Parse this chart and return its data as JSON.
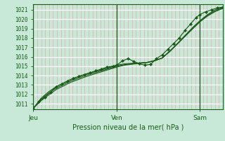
{
  "background_color": "#c8e8d8",
  "plot_bg_color": "#c8e8d8",
  "grid_color_major_y": "#ffffff",
  "grid_color_minor_x": "#e8a8a8",
  "line_color": "#1a5c1a",
  "ylabel_ticks": [
    1011,
    1012,
    1013,
    1014,
    1015,
    1016,
    1017,
    1018,
    1019,
    1020,
    1021
  ],
  "ymin": 1010.4,
  "ymax": 1021.6,
  "xlabel": "Pression niveau de la mer( hPa )",
  "xtick_labels": [
    "Jeu",
    "Ven",
    "Sam"
  ],
  "xtick_positions": [
    0.0,
    0.44,
    0.88
  ],
  "x_vlines": [
    0.0,
    0.44,
    0.88
  ],
  "line1_x": [
    0.0,
    0.03,
    0.06,
    0.09,
    0.12,
    0.15,
    0.18,
    0.21,
    0.24,
    0.27,
    0.3,
    0.33,
    0.36,
    0.39,
    0.42,
    0.44,
    0.47,
    0.5,
    0.53,
    0.56,
    0.59,
    0.62,
    0.65,
    0.68,
    0.71,
    0.74,
    0.77,
    0.8,
    0.83,
    0.86,
    0.88,
    0.91,
    0.94,
    0.97,
    1.0
  ],
  "line1_y": [
    1010.5,
    1011.2,
    1011.7,
    1012.2,
    1012.8,
    1013.1,
    1013.4,
    1013.7,
    1013.9,
    1014.1,
    1014.3,
    1014.5,
    1014.7,
    1014.9,
    1015.0,
    1015.1,
    1015.55,
    1015.8,
    1015.5,
    1015.25,
    1015.1,
    1015.2,
    1015.8,
    1016.2,
    1016.8,
    1017.4,
    1018.0,
    1018.8,
    1019.5,
    1020.2,
    1020.5,
    1020.8,
    1021.0,
    1021.2,
    1021.3
  ],
  "line2_x": [
    0.0,
    0.04,
    0.08,
    0.12,
    0.16,
    0.2,
    0.24,
    0.28,
    0.32,
    0.36,
    0.4,
    0.44,
    0.48,
    0.52,
    0.56,
    0.6,
    0.64,
    0.68,
    0.72,
    0.76,
    0.8,
    0.84,
    0.88,
    0.92,
    0.96,
    1.0
  ],
  "line2_y": [
    1010.5,
    1011.3,
    1011.9,
    1012.5,
    1012.9,
    1013.3,
    1013.6,
    1013.9,
    1014.15,
    1014.4,
    1014.65,
    1014.9,
    1015.1,
    1015.2,
    1015.3,
    1015.4,
    1015.6,
    1015.85,
    1016.6,
    1017.4,
    1018.25,
    1019.1,
    1019.85,
    1020.5,
    1021.0,
    1021.25
  ],
  "line3_x": [
    0.0,
    0.04,
    0.08,
    0.12,
    0.16,
    0.2,
    0.24,
    0.28,
    0.32,
    0.36,
    0.4,
    0.44,
    0.48,
    0.52,
    0.56,
    0.6,
    0.64,
    0.68,
    0.72,
    0.76,
    0.8,
    0.84,
    0.88,
    0.92,
    0.96,
    1.0
  ],
  "line3_y": [
    1010.5,
    1011.45,
    1012.1,
    1012.65,
    1013.05,
    1013.45,
    1013.75,
    1014.05,
    1014.28,
    1014.52,
    1014.75,
    1015.0,
    1015.15,
    1015.25,
    1015.32,
    1015.38,
    1015.58,
    1015.88,
    1016.58,
    1017.38,
    1018.2,
    1019.0,
    1019.78,
    1020.42,
    1020.88,
    1021.2
  ],
  "line4_x": [
    0.0,
    0.04,
    0.08,
    0.12,
    0.16,
    0.2,
    0.24,
    0.28,
    0.32,
    0.36,
    0.4,
    0.44,
    0.48,
    0.52,
    0.56,
    0.6,
    0.64,
    0.68,
    0.72,
    0.76,
    0.8,
    0.84,
    0.88,
    0.92,
    0.96,
    1.0
  ],
  "line4_y": [
    1010.5,
    1011.55,
    1012.25,
    1012.8,
    1013.2,
    1013.6,
    1013.9,
    1014.18,
    1014.4,
    1014.62,
    1014.85,
    1015.1,
    1015.24,
    1015.3,
    1015.34,
    1015.38,
    1015.56,
    1015.86,
    1016.54,
    1017.34,
    1018.15,
    1018.95,
    1019.73,
    1020.35,
    1020.82,
    1021.15
  ]
}
